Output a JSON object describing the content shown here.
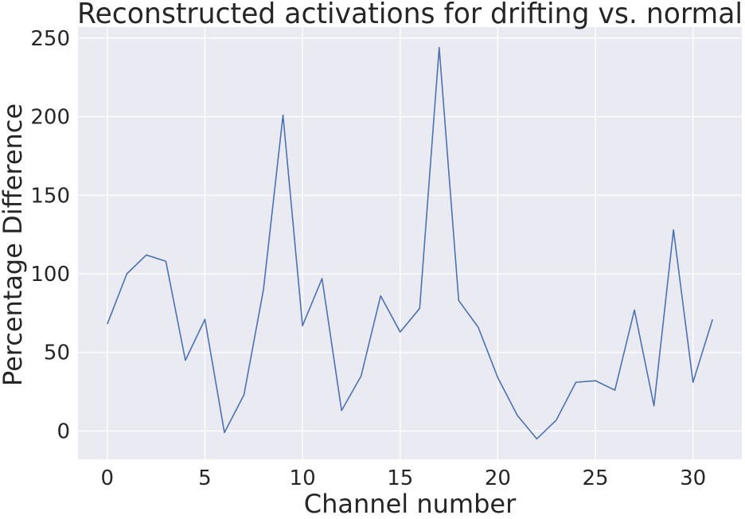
{
  "chart_data": {
    "type": "line",
    "title": "Reconstructed activations for drifting vs. normal",
    "xlabel": "Channel number",
    "ylabel": "Percentage Difference",
    "xlim": [
      -1.5,
      32.5
    ],
    "ylim": [
      -18,
      257
    ],
    "xticks": [
      0,
      5,
      10,
      15,
      20,
      25,
      30
    ],
    "yticks": [
      0,
      50,
      100,
      150,
      200,
      250
    ],
    "grid": true,
    "background_color": "#EAEAF2",
    "grid_color": "#FFFFFF",
    "series": [
      {
        "color": "#4C72B0",
        "x": [
          0,
          1,
          2,
          3,
          4,
          5,
          6,
          7,
          8,
          9,
          10,
          11,
          12,
          13,
          14,
          15,
          16,
          17,
          18,
          19,
          20,
          21,
          22,
          23,
          24,
          25,
          26,
          27,
          28,
          29,
          30,
          31
        ],
        "y": [
          68,
          100,
          112,
          108,
          45,
          71,
          -1,
          23,
          90,
          201,
          67,
          97,
          13,
          35,
          86,
          63,
          78,
          244,
          83,
          66,
          34,
          10,
          -5,
          7,
          31,
          32,
          26,
          77,
          16,
          128,
          31,
          71
        ]
      }
    ]
  }
}
